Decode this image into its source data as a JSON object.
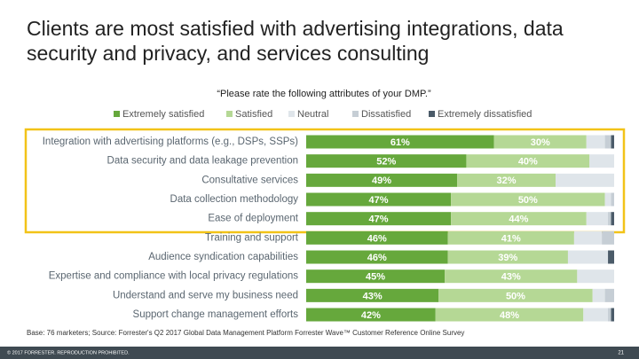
{
  "chart_data": {
    "type": "stacked-bar-horizontal",
    "title": "Clients are most satisfied with advertising integrations, data security and privacy, and services consulting",
    "subtitle": "“Please rate the following attributes of your DMP.”",
    "categories": [
      "Integration with advertising platforms (e.g., DSPs, SSPs)",
      "Data security and data leakage prevention",
      "Consultative services",
      "Data collection methodology",
      "Ease of deployment",
      "Training and support",
      "Audience syndication capabilities",
      "Expertise and compliance with local privacy regulations",
      "Understand and serve my business need",
      "Support change management efforts"
    ],
    "series": [
      {
        "name": "Extremely satisfied",
        "color": "#66a83c",
        "values": [
          61,
          52,
          49,
          47,
          47,
          46,
          46,
          45,
          43,
          42
        ],
        "value_labels": [
          "61%",
          "52%",
          "49%",
          "47%",
          "47%",
          "46%",
          "46%",
          "45%",
          "43%",
          "42%"
        ]
      },
      {
        "name": "Satisfied",
        "color": "#b5d895",
        "values": [
          30,
          40,
          32,
          50,
          44,
          41,
          39,
          43,
          50,
          48
        ],
        "value_labels": [
          "30%",
          "40%",
          "32%",
          "50%",
          "44%",
          "41%",
          "39%",
          "43%",
          "50%",
          "48%"
        ]
      },
      {
        "name": "Neutral",
        "color": "#dfe5ea",
        "values": [
          6,
          8,
          19,
          2,
          7,
          9,
          13,
          12,
          4,
          8
        ]
      },
      {
        "name": "Dissatisfied",
        "color": "#c6ced5",
        "values": [
          2,
          0,
          0,
          1,
          1,
          4,
          0,
          0,
          3,
          1
        ]
      },
      {
        "name": "Extremely dissatisfied",
        "color": "#4b5b69",
        "values": [
          1,
          0,
          0,
          0,
          1,
          0,
          2,
          0,
          0,
          1
        ]
      }
    ],
    "source": "Base: 76 marketers; Source: Forrester's Q2 2017 Global Data Management Platform Forrester Wave™ Customer Reference Online Survey",
    "copyright": "© 2017 FORRESTER. REPRODUCTION PROHIBITED.",
    "page_number": "21"
  }
}
